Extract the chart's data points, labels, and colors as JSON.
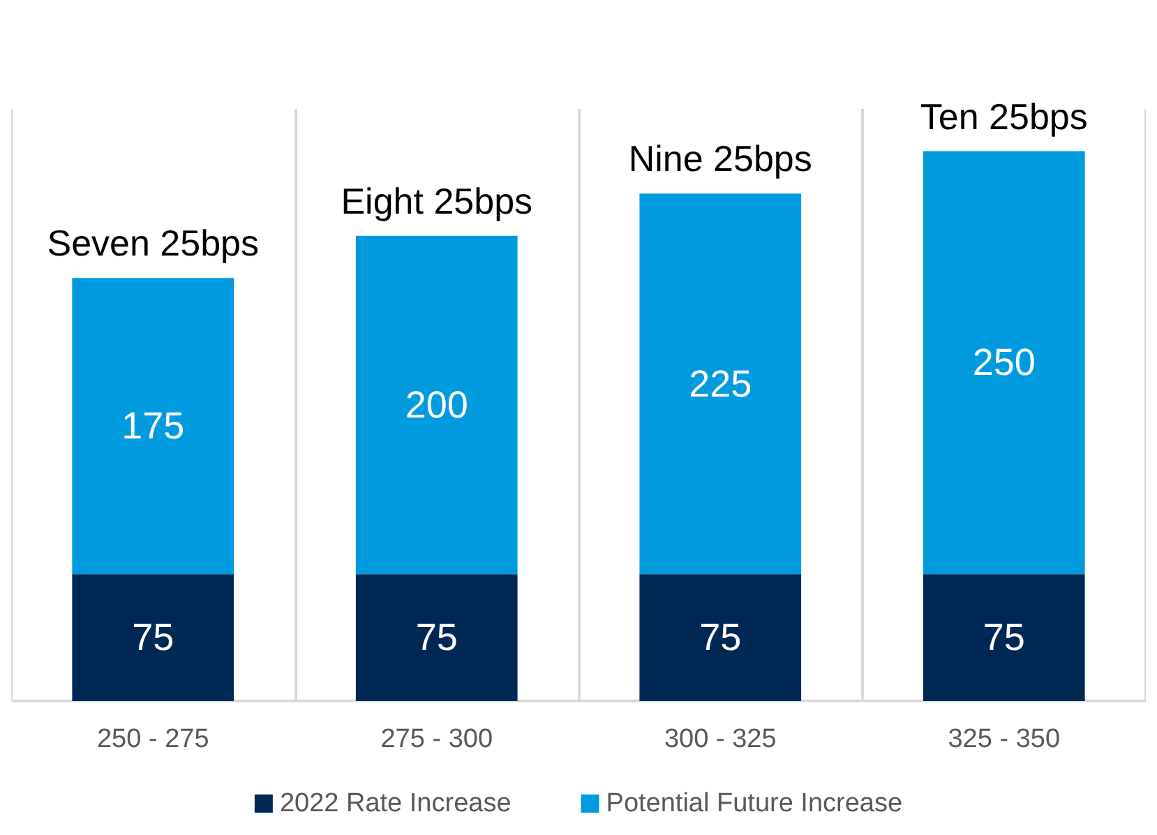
{
  "chart_data": {
    "type": "bar",
    "stacked": true,
    "categories": [
      "250 - 275",
      "275 - 300",
      "300 - 325",
      "325 - 350"
    ],
    "series": [
      {
        "name": "2022 Rate Increase",
        "color": "#002855",
        "values": [
          75,
          75,
          75,
          75
        ]
      },
      {
        "name": "Potential Future Increase",
        "color": "#009ade",
        "values": [
          175,
          200,
          225,
          250
        ]
      }
    ],
    "data_labels": true,
    "totals": [
      "Seven 25bps",
      "Eight 25bps",
      "Nine 25bps",
      "Ten 25bps"
    ],
    "grid": "x",
    "legend": "bottom"
  }
}
